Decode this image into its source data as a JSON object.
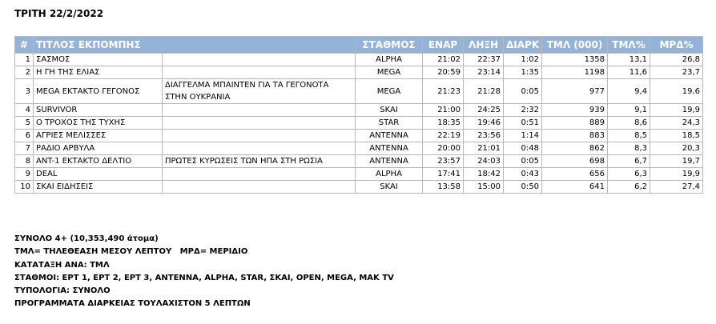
{
  "header": {
    "title": "ΤΡΙΤΗ 22/2/2022"
  },
  "table": {
    "columns": [
      "#",
      "ΤΙΤΛΟΣ ΕΚΠΟΜΠΗΣ",
      "ΣΤΑΘΜΟΣ",
      "ΕΝΑΡ",
      "ΛΗΞΗ",
      "ΔΙΑΡΚ",
      "ΤΜΛ (000)",
      "ΤΜΛ%",
      "ΜΡΔ%"
    ],
    "rows": [
      {
        "rank": "1",
        "title": "ΣΑΣΜΟΣ",
        "station": "ALPHA",
        "start": "21:02",
        "end": "22:37",
        "duration": "1:02",
        "tml": "1358",
        "tml_pct": "13,1",
        "share": "26,8"
      },
      {
        "rank": "2",
        "title": "Η ΓΗ ΤΗΣ ΕΛΙΑΣ",
        "station": "MEGA",
        "start": "20:59",
        "end": "23:14",
        "duration": "1:35",
        "tml": "1198",
        "tml_pct": "11,6",
        "share": "23,7"
      },
      {
        "rank": "3",
        "title": "MEGA ΕΚΤΑΚΤΟ ΓΕΓΟΝΟΣ",
        "subtitle": "ΔΙΑΓΓΕΛΜΑ ΜΠΑΙΝΤΕΝ ΓΙΑ ΤΑ ΓΕΓΟΝΟΤΑ ΣΤΗΝ ΟΥΚΡΑΝΙΑ",
        "station": "MEGA",
        "start": "21:23",
        "end": "21:28",
        "duration": "0:05",
        "tml": "977",
        "tml_pct": "9,4",
        "share": "19,6"
      },
      {
        "rank": "4",
        "title": "SURVIVOR",
        "station": "SKAI",
        "start": "21:00",
        "end": "24:25",
        "duration": "2:32",
        "tml": "939",
        "tml_pct": "9,1",
        "share": "19,9"
      },
      {
        "rank": "5",
        "title": "Ο ΤΡΟΧΟΣ ΤΗΣ ΤΥΧΗΣ",
        "station": "STAR",
        "start": "18:35",
        "end": "19:46",
        "duration": "0:51",
        "tml": "889",
        "tml_pct": "8,6",
        "share": "24,3"
      },
      {
        "rank": "6",
        "title": "ΑΓΡΙΕΣ ΜΕΛΙΣΣΕΣ",
        "station": "ANTENNA",
        "start": "22:19",
        "end": "23:56",
        "duration": "1:14",
        "tml": "883",
        "tml_pct": "8,5",
        "share": "18,5"
      },
      {
        "rank": "7",
        "title": "ΡΑΔΙΟ ΑΡΒΥΛΑ",
        "station": "ANTENNA",
        "start": "20:00",
        "end": "21:01",
        "duration": "0:48",
        "tml": "862",
        "tml_pct": "8,3",
        "share": "20,3"
      },
      {
        "rank": "8",
        "title": "ANT-1 ΕΚΤΑΚΤΟ ΔΕΛΤΙΟ",
        "subtitle": "ΠΡΩΤΕΣ ΚΥΡΩΣΕΙΣ ΤΩΝ ΗΠΑ ΣΤΗ ΡΩΣΙΑ",
        "station": "ANTENNA",
        "start": "23:57",
        "end": "24:03",
        "duration": "0:05",
        "tml": "698",
        "tml_pct": "6,7",
        "share": "19,7"
      },
      {
        "rank": "9",
        "title": "DEAL",
        "station": "ALPHA",
        "start": "17:41",
        "end": "18:42",
        "duration": "0:43",
        "tml": "656",
        "tml_pct": "6,3",
        "share": "19,9"
      },
      {
        "rank": "10",
        "title": "ΣΚΑΙ ΕΙΔΗΣΕΙΣ",
        "station": "SKAI",
        "start": "13:58",
        "end": "15:00",
        "duration": "0:50",
        "tml": "641",
        "tml_pct": "6,2",
        "share": "27,4"
      }
    ]
  },
  "notes": [
    "ΣΥΝΟΛΟ 4+ (10,353,490 άτομα)",
    "ΤΜΛ= ΤΗΛΕΘΕΑΣΗ ΜΕΣΟΥ ΛΕΠΤΟΥ   ΜΡΔ= ΜΕΡΙΔΙΟ",
    "ΚΑΤΑΤΑΞΗ ΑΝΑ: ΤΜΛ",
    "ΣΤΑΘΜΟΙ: ΕΡΤ 1, ΕΡΤ 2, ΕΡΤ 3, ANTENNA, ALPHA, STAR, ΣΚΑΙ, OPEN, MEGA, MAK TV",
    "ΤΥΠΟΛΟΓΙΑ: ΣΥΝΟΛΟ",
    "ΠΡΟΓΡΑΜΜΑΤΑ ΔΙΑΡΚΕΙΑΣ ΤΟΥΛΑΧΙΣΤΟΝ 5 ΛΕΠΤΩΝ"
  ]
}
